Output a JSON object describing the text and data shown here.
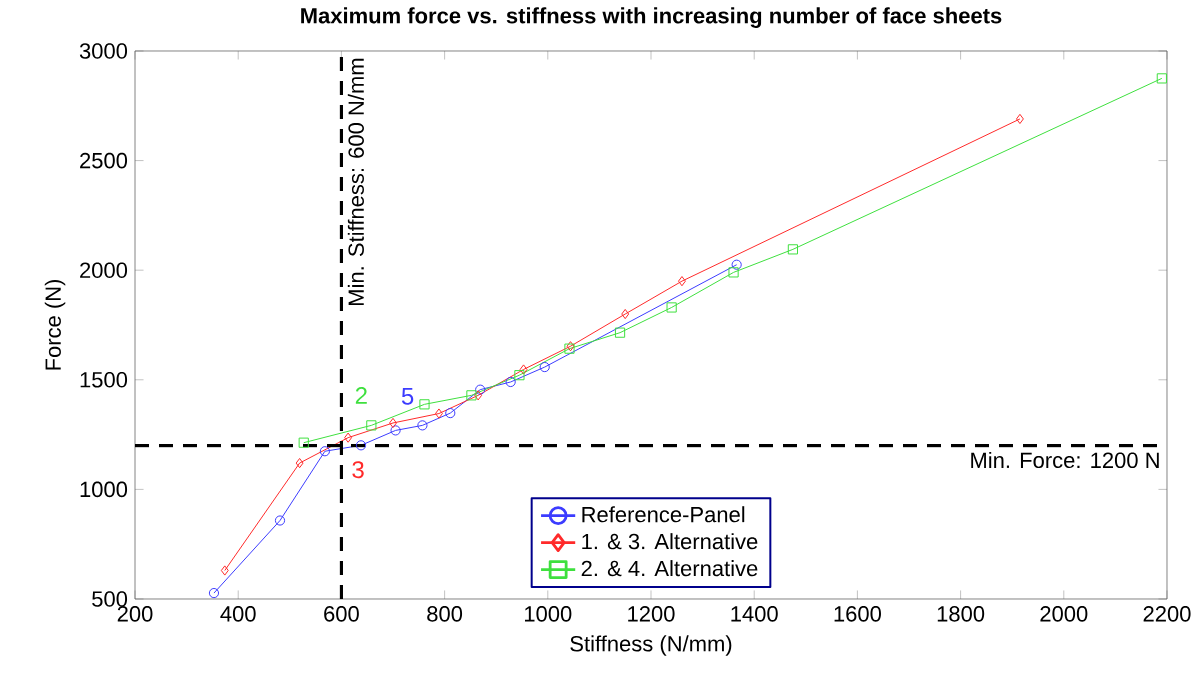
{
  "chart_data": {
    "type": "line",
    "title": "Maximum force vs. stiffness with increasing number of face sheets",
    "xlabel": "Stiffness (N/mm)",
    "ylabel": "Force (N)",
    "xlim": [
      200,
      2200
    ],
    "xticks": [
      200,
      400,
      600,
      800,
      1000,
      1200,
      1400,
      1600,
      1800,
      2000,
      2200
    ],
    "ylim": [
      500,
      3000
    ],
    "yticks": [
      500,
      1000,
      1500,
      2000,
      2500,
      3000
    ],
    "legend": "bottom",
    "grid": false,
    "series": [
      {
        "name": "Reference-Panel",
        "color": "#3c3cff",
        "marker": "circle",
        "x": [
          353,
          481,
          568,
          638,
          705,
          757,
          811,
          869,
          928,
          994,
          1366
        ],
        "values": [
          527,
          858,
          1174,
          1201,
          1269,
          1292,
          1348,
          1455,
          1490,
          1558,
          2025
        ]
      },
      {
        "name": "1. & 3. Alternative",
        "color": "#ff2a2a",
        "marker": "diamond",
        "x": [
          374,
          519,
          613,
          700,
          789,
          865,
          953,
          1044,
          1150,
          1260,
          1915
        ],
        "values": [
          630,
          1120,
          1236,
          1303,
          1346,
          1429,
          1547,
          1653,
          1800,
          1950,
          2690
        ]
      },
      {
        "name": "2. & 4. Alternative",
        "color": "#3ee03e",
        "marker": "square",
        "x": [
          527,
          658,
          761,
          852,
          945,
          1042,
          1140,
          1240,
          1360,
          1475,
          2190
        ],
        "values": [
          1213,
          1292,
          1388,
          1429,
          1521,
          1642,
          1715,
          1830,
          1990,
          2095,
          2875
        ]
      }
    ],
    "ref_lines": [
      {
        "axis": "y",
        "value": 1200,
        "label": "Min. Force: 1200 N",
        "color": "#000000",
        "line_style": "dashed"
      },
      {
        "axis": "x",
        "value": 600,
        "label": "Min. Stiffness: 600 N/mm",
        "color": "#000000",
        "line_style": "dashed"
      }
    ],
    "annotations": [
      {
        "text": "2",
        "x": 658,
        "y": 1292
      },
      {
        "text": "5",
        "x": 705,
        "y": 1269
      },
      {
        "text": "3",
        "x": 613,
        "y": 1236
      }
    ]
  }
}
